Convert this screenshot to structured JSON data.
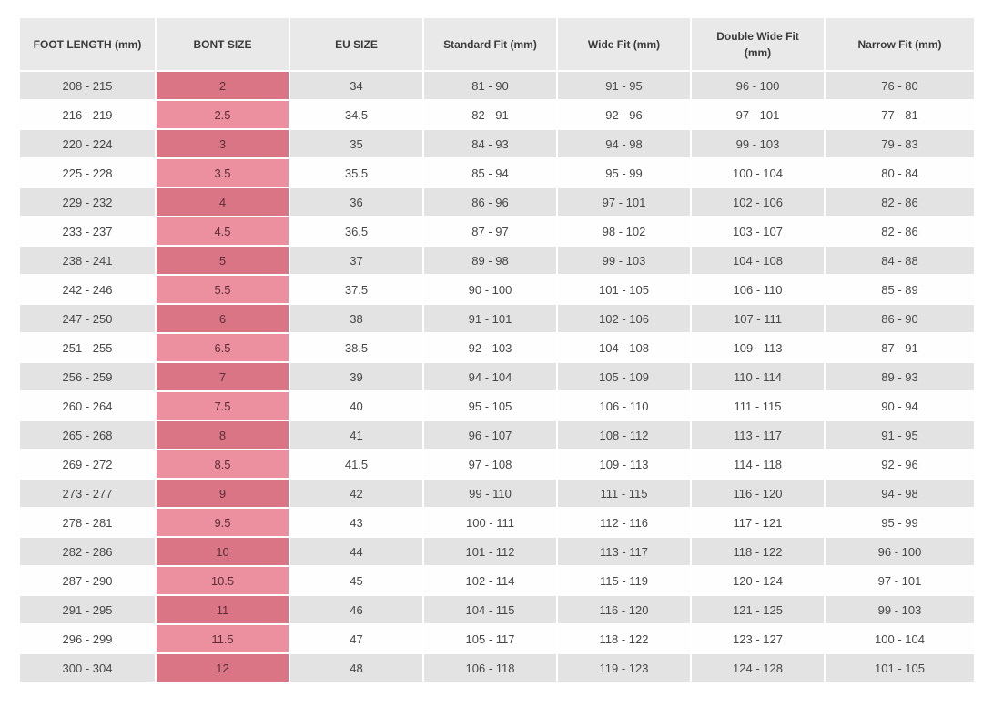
{
  "colors": {
    "header_bg": "#e9e9e9",
    "header_text": "#3b3b3b",
    "body_text": "#474747",
    "row_gray": "#e3e3e3",
    "row_white": "#fefefe",
    "bont_cell_dark": "#d97584",
    "bont_cell_light": "#ec8f9e",
    "bont_cell_text": "#5c2e3a"
  },
  "chart_data": {
    "type": "table",
    "columns": [
      "FOOT LENGTH (mm)",
      "BONT SIZE",
      "EU SIZE",
      "Standard Fit (mm)",
      "Wide Fit (mm)",
      "Double Wide Fit (mm)",
      "Narrow Fit (mm)"
    ],
    "highlighted_column": "BONT SIZE",
    "striping": "alternating rows, first row gray",
    "rows": [
      [
        "208 - 215",
        "2",
        "34",
        "81 - 90",
        "91 - 95",
        "96 - 100",
        "76 - 80"
      ],
      [
        "216 - 219",
        "2.5",
        "34.5",
        "82 - 91",
        "92 - 96",
        "97 - 101",
        "77 - 81"
      ],
      [
        "220 - 224",
        "3",
        "35",
        "84 - 93",
        "94 - 98",
        "99 - 103",
        "79 - 83"
      ],
      [
        "225 - 228",
        "3.5",
        "35.5",
        "85 - 94",
        "95 - 99",
        "100 - 104",
        "80 - 84"
      ],
      [
        "229 - 232",
        "4",
        "36",
        "86 - 96",
        "97 - 101",
        "102 - 106",
        "82 - 86"
      ],
      [
        "233 - 237",
        "4.5",
        "36.5",
        "87 - 97",
        "98 - 102",
        "103 - 107",
        "82 - 86"
      ],
      [
        "238 - 241",
        "5",
        "37",
        "89 - 98",
        "99 - 103",
        "104 - 108",
        "84 - 88"
      ],
      [
        "242 - 246",
        "5.5",
        "37.5",
        "90 - 100",
        "101 - 105",
        "106 - 110",
        "85 - 89"
      ],
      [
        "247 - 250",
        "6",
        "38",
        "91 - 101",
        "102 - 106",
        "107 - 111",
        "86 - 90"
      ],
      [
        "251 - 255",
        "6.5",
        "38.5",
        "92 - 103",
        "104 - 108",
        "109 - 113",
        "87 - 91"
      ],
      [
        "256 - 259",
        "7",
        "39",
        "94 - 104",
        "105 - 109",
        "110 - 114",
        "89 - 93"
      ],
      [
        "260 - 264",
        "7.5",
        "40",
        "95 - 105",
        "106 - 110",
        "111 - 115",
        "90 - 94"
      ],
      [
        "265 - 268",
        "8",
        "41",
        "96 - 107",
        "108 - 112",
        "113 - 117",
        "91 - 95"
      ],
      [
        "269 - 272",
        "8.5",
        "41.5",
        "97 - 108",
        "109 - 113",
        "114 - 118",
        "92 - 96"
      ],
      [
        "273 - 277",
        "9",
        "42",
        "99 - 110",
        "111 - 115",
        "116 - 120",
        "94 - 98"
      ],
      [
        "278 - 281",
        "9.5",
        "43",
        "100 - 111",
        "112 - 116",
        "117 - 121",
        "95 - 99"
      ],
      [
        "282 - 286",
        "10",
        "44",
        "101 - 112",
        "113 - 117",
        "118 - 122",
        "96 - 100"
      ],
      [
        "287 - 290",
        "10.5",
        "45",
        "102 - 114",
        "115 - 119",
        "120 - 124",
        "97 - 101"
      ],
      [
        "291 - 295",
        "11",
        "46",
        "104 - 115",
        "116 - 120",
        "121 - 125",
        "99 - 103"
      ],
      [
        "296 - 299",
        "11.5",
        "47",
        "105 - 117",
        "118 - 122",
        "123 - 127",
        "100 - 104"
      ],
      [
        "300 - 304",
        "12",
        "48",
        "106 - 118",
        "119 - 123",
        "124 - 128",
        "101 - 105"
      ]
    ]
  }
}
